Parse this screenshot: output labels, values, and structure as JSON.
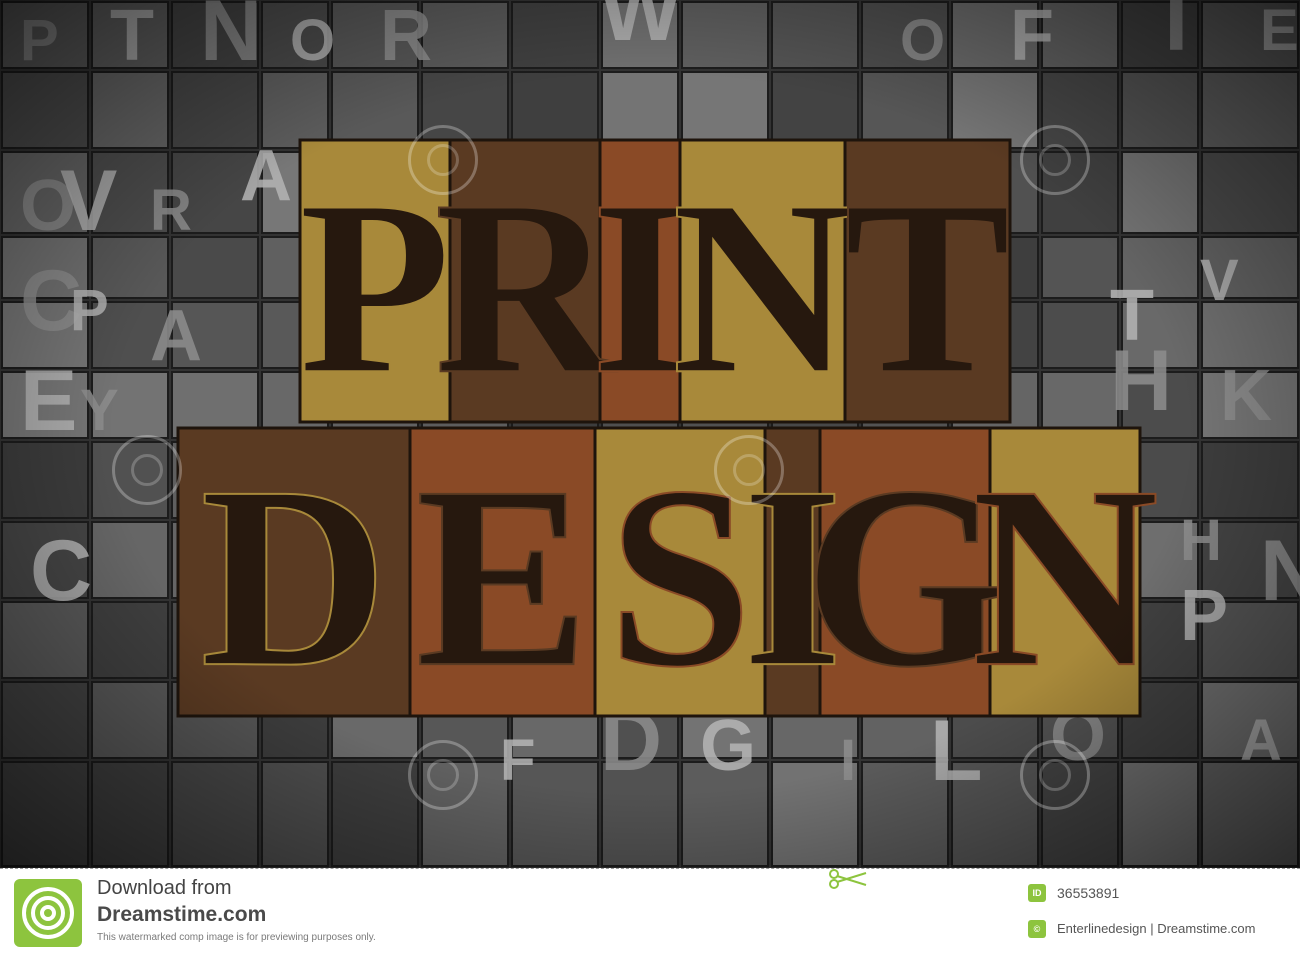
{
  "photo": {
    "subject": "PRINT DESIGN",
    "background_letters": [
      "P",
      "T",
      "N",
      "O",
      "R",
      "W",
      "O",
      "F",
      "T",
      "E",
      "O",
      "V",
      "R",
      "A",
      "C",
      "P",
      "A",
      "E",
      "Y",
      "T",
      "H",
      "V",
      "K",
      "C",
      "H",
      "P",
      "N",
      "A",
      "O",
      "L",
      "I",
      "G",
      "D",
      "F"
    ],
    "watermark": "dreamstime",
    "colors": {
      "wood_dark": "#5a3a22",
      "wood_rust": "#8a4a26",
      "wood_gold": "#a8893a",
      "metal": "#8c8c8c",
      "background": "#2a2a2a"
    }
  },
  "footer": {
    "download_label": "Download from",
    "site_name": "Dreamstime.com",
    "notice": "This watermarked comp image is for previewing purposes only.",
    "id_badge": "ID",
    "image_id": "36553891",
    "copyright_badge": "©",
    "credit": "Enterlinedesign | Dreamstime.com",
    "brand_color": "#8dc43e"
  },
  "icons": {
    "logo": "dreamstime-spiral-icon",
    "scissors": "scissors-icon"
  }
}
